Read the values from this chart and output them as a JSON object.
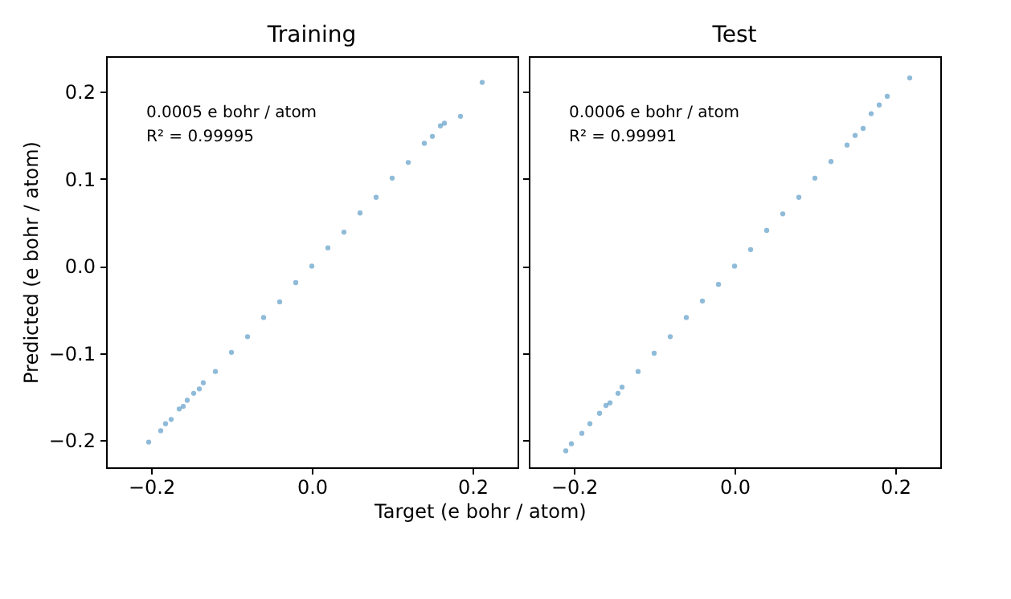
{
  "chart_data": [
    {
      "type": "scatter",
      "title": "Training",
      "xlabel": "Target (e bohr / atom)",
      "ylabel": "Predicted (e bohr / atom)",
      "annotations": [
        "0.0005 e bohr / atom",
        "R² =  0.99995"
      ],
      "xlim": [
        -0.256,
        0.256
      ],
      "ylim": [
        -0.231,
        0.241
      ],
      "xticks": [
        {
          "value": -0.2,
          "label": "−0.2"
        },
        {
          "value": 0,
          "label": "0.0"
        },
        {
          "value": 0.2,
          "label": "0.2"
        }
      ],
      "yticks": [
        {
          "value": -0.2,
          "label": "−0.2"
        },
        {
          "value": -0.1,
          "label": "−0.1"
        },
        {
          "value": 0,
          "label": "0.0"
        },
        {
          "value": 0.1,
          "label": "0.1"
        },
        {
          "value": 0.2,
          "label": "0.2"
        }
      ],
      "grid": false,
      "marker": "circle",
      "series": [
        {
          "color": "#1f77b4",
          "x": [
            -0.203,
            -0.188,
            -0.182,
            -0.175,
            -0.165,
            -0.16,
            -0.155,
            -0.147,
            -0.14,
            -0.135,
            -0.12,
            -0.1,
            -0.08,
            -0.06,
            -0.04,
            -0.02,
            0,
            0.02,
            0.04,
            0.06,
            0.08,
            0.1,
            0.12,
            0.14,
            0.15,
            0.16,
            0.165,
            0.185,
            0.212
          ],
          "values": [
            -0.202,
            -0.189,
            -0.181,
            -0.176,
            -0.164,
            -0.161,
            -0.154,
            -0.146,
            -0.141,
            -0.134,
            -0.121,
            -0.099,
            -0.081,
            -0.059,
            -0.041,
            -0.019,
            0,
            0.021,
            0.039,
            0.061,
            0.079,
            0.101,
            0.119,
            0.141,
            0.149,
            0.161,
            0.164,
            0.172,
            0.211
          ]
        }
      ]
    },
    {
      "type": "scatter",
      "title": "Test",
      "annotations": [
        "0.0006 e bohr / atom",
        "R² =  0.99991"
      ],
      "xlim": [
        -0.256,
        0.256
      ],
      "ylim": [
        -0.231,
        0.241
      ],
      "xticks": [
        {
          "value": -0.2,
          "label": "−0.2"
        },
        {
          "value": 0,
          "label": "0.0"
        },
        {
          "value": 0.2,
          "label": "0.2"
        }
      ],
      "yticks": [
        {
          "value": -0.2,
          "label": null
        },
        {
          "value": -0.1,
          "label": null
        },
        {
          "value": 0,
          "label": null
        },
        {
          "value": 0.1,
          "label": null
        },
        {
          "value": 0.2,
          "label": null
        }
      ],
      "tick_labels": "x",
      "grid": false,
      "marker": "circle",
      "series": [
        {
          "color": "#1f77b4",
          "x": [
            -0.21,
            -0.203,
            -0.19,
            -0.18,
            -0.168,
            -0.16,
            -0.155,
            -0.145,
            -0.14,
            -0.12,
            -0.1,
            -0.08,
            -0.06,
            -0.04,
            -0.02,
            0,
            0.02,
            0.04,
            0.06,
            0.08,
            0.1,
            0.12,
            0.14,
            0.15,
            0.16,
            0.17,
            0.18,
            0.19,
            0.218
          ],
          "values": [
            -0.212,
            -0.204,
            -0.192,
            -0.181,
            -0.169,
            -0.16,
            -0.157,
            -0.146,
            -0.139,
            -0.121,
            -0.1,
            -0.081,
            -0.059,
            -0.04,
            -0.021,
            0,
            0.019,
            0.041,
            0.06,
            0.079,
            0.101,
            0.12,
            0.139,
            0.15,
            0.158,
            0.175,
            0.185,
            0.195,
            0.216
          ]
        }
      ]
    }
  ]
}
